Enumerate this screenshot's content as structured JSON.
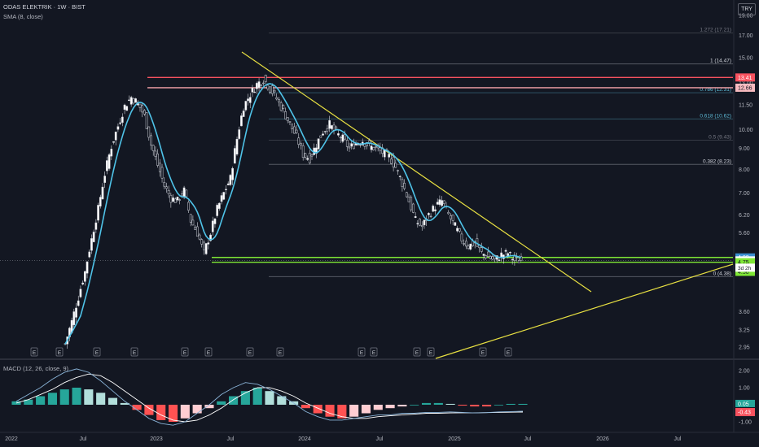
{
  "header": {
    "title": "ODAS ELEKTRIK · 1W · BIST",
    "indicator": "SMA (8, close)",
    "currency": "TRY"
  },
  "macd_header": {
    "label": "MACD (12, 26, close, 9)"
  },
  "chart_data": [
    {
      "type": "candlestick",
      "title": "",
      "x_tick_labels": [
        "2022",
        "Jul",
        "2023",
        "Jul",
        "2024",
        "Jul",
        "2025",
        "Jul",
        "2026",
        "Jul"
      ],
      "y_tick_labels": [
        "19.00",
        "17.00",
        "15.00",
        "13.00",
        "11.50",
        "10.00",
        "9.00",
        "8.00",
        "7.00",
        "6.20",
        "5.60",
        "4.80",
        "3.60",
        "3.25",
        "2.95"
      ],
      "y_scale": "log",
      "ylim": [
        2.8,
        20.0
      ],
      "fib_levels": [
        {
          "label": "1.272 (17.21)",
          "ratio": 1.272,
          "value": 17.21,
          "color": "#787b86"
        },
        {
          "label": "1 (14.47)",
          "ratio": 1,
          "value": 14.47,
          "color": "#d1d4dc"
        },
        {
          "label": "0.786 (12.31)",
          "ratio": 0.786,
          "value": 12.31,
          "color": "#5ebcd8"
        },
        {
          "label": "0.618 (10.62)",
          "ratio": 0.618,
          "value": 10.62,
          "color": "#5ebcd8"
        },
        {
          "label": "0.5 (9.43)",
          "ratio": 0.5,
          "value": 9.43,
          "color": "#787b86"
        },
        {
          "label": "0.382 (8.23)",
          "ratio": 0.382,
          "value": 8.23,
          "color": "#d1d4dc"
        },
        {
          "label": "0 (4.38)",
          "ratio": 0,
          "value": 4.38,
          "color": "#d1d4dc"
        }
      ],
      "horizontal_levels": [
        {
          "value": 13.41,
          "color": "#f7525f"
        },
        {
          "value": 12.66,
          "color": "#f7a3a9"
        },
        {
          "value": 4.88,
          "color": "#7fe835"
        },
        {
          "value": 4.75,
          "color": "#7fe835"
        }
      ],
      "price_badges": [
        {
          "label": "13.41",
          "value": 13.41,
          "bg": "#f7525f",
          "fg": "#ffffff"
        },
        {
          "label": "12.66",
          "value": 12.66,
          "bg": "#f8bbc0",
          "fg": "#131722"
        },
        {
          "label": "4.88",
          "value": 4.88,
          "bg": "#3b8fd0",
          "fg": "#ffffff"
        },
        {
          "label": "4.80",
          "value": 4.8,
          "bg": "#ffffff",
          "fg": "#131722"
        },
        {
          "label": "4.75",
          "value": 4.75,
          "bg": "#7fe835",
          "fg": "#131722"
        },
        {
          "label": "4.50",
          "value": 4.5,
          "bg": "#7fe835",
          "fg": "#131722"
        }
      ],
      "countdown": "3d 2h",
      "last_price": 4.8,
      "series": {
        "close": [
          3.0,
          3.4,
          3.9,
          4.5,
          5.4,
          6.4,
          7.8,
          9.1,
          10.2,
          11.4,
          12.0,
          11.6,
          10.8,
          9.2,
          8.2,
          7.3,
          6.8,
          6.7,
          7.1,
          6.0,
          5.6,
          5.0,
          5.6,
          6.4,
          7.0,
          7.6,
          9.5,
          11.4,
          12.2,
          12.9,
          13.3,
          12.6,
          11.9,
          11.1,
          10.3,
          9.6,
          8.7,
          8.5,
          9.2,
          9.9,
          10.3,
          9.8,
          9.5,
          9.0,
          9.3,
          9.4,
          9.1,
          9.0,
          8.8,
          8.6,
          8.1,
          7.4,
          6.7,
          6.0,
          5.8,
          6.2,
          6.5,
          6.7,
          6.2,
          5.8,
          5.4,
          5.2,
          5.3,
          5.0,
          4.9,
          4.8,
          4.95,
          5.0,
          4.8,
          4.8
        ]
      },
      "event_markers": [
        "E",
        "E",
        "E",
        "E",
        "E",
        "E",
        "E",
        "E",
        "E",
        "E",
        "E",
        "E",
        "E",
        "E"
      ]
    },
    {
      "type": "macd",
      "title": "",
      "y_tick_labels": [
        "2.00",
        "1.00",
        "0.00",
        "-1.00",
        "-2.00"
      ],
      "ylim": [
        -2.5,
        2.5
      ],
      "badges": [
        {
          "label": "0.05",
          "value": 0.05,
          "bg": "#26a69a",
          "fg": "#ffffff"
        },
        {
          "label": "-0.38",
          "value": -0.38,
          "bg": "#131722",
          "fg": "#d1d4dc"
        },
        {
          "label": "-0.43",
          "value": -0.43,
          "bg": "#f7525f",
          "fg": "#ffffff"
        }
      ],
      "histogram": [
        0.2,
        0.3,
        0.5,
        0.7,
        0.9,
        1.0,
        0.9,
        0.7,
        0.4,
        0.1,
        -0.3,
        -0.6,
        -0.9,
        -1.0,
        -0.8,
        -0.5,
        -0.2,
        0.2,
        0.5,
        0.8,
        1.0,
        0.8,
        0.5,
        0.2,
        -0.2,
        -0.5,
        -0.7,
        -0.8,
        -0.7,
        -0.5,
        -0.3,
        -0.2,
        -0.1,
        0.0,
        0.1,
        0.1,
        0.05,
        -0.05,
        -0.1,
        -0.1,
        0.0,
        0.05,
        0.05
      ],
      "macd_line": [
        0.2,
        0.6,
        1.0,
        1.5,
        1.9,
        2.1,
        1.9,
        1.4,
        0.8,
        0.2,
        -0.3,
        -0.8,
        -1.1,
        -1.2,
        -1.0,
        -0.5,
        0.0,
        0.6,
        1.0,
        1.3,
        1.2,
        0.9,
        0.5,
        0.1,
        -0.4,
        -0.7,
        -0.9,
        -0.9,
        -0.8,
        -0.7,
        -0.6,
        -0.6,
        -0.5,
        -0.5,
        -0.45,
        -0.45,
        -0.42,
        -0.45,
        -0.48,
        -0.46,
        -0.42,
        -0.4,
        -0.38
      ],
      "signal_line": [
        0.1,
        0.3,
        0.6,
        0.9,
        1.3,
        1.6,
        1.8,
        1.7,
        1.3,
        0.8,
        0.3,
        -0.2,
        -0.6,
        -0.9,
        -1.0,
        -0.9,
        -0.6,
        -0.2,
        0.3,
        0.7,
        1.0,
        1.0,
        0.8,
        0.5,
        0.1,
        -0.2,
        -0.5,
        -0.7,
        -0.8,
        -0.8,
        -0.7,
        -0.65,
        -0.6,
        -0.55,
        -0.5,
        -0.5,
        -0.48,
        -0.47,
        -0.47,
        -0.46,
        -0.45,
        -0.44,
        -0.43
      ]
    }
  ]
}
